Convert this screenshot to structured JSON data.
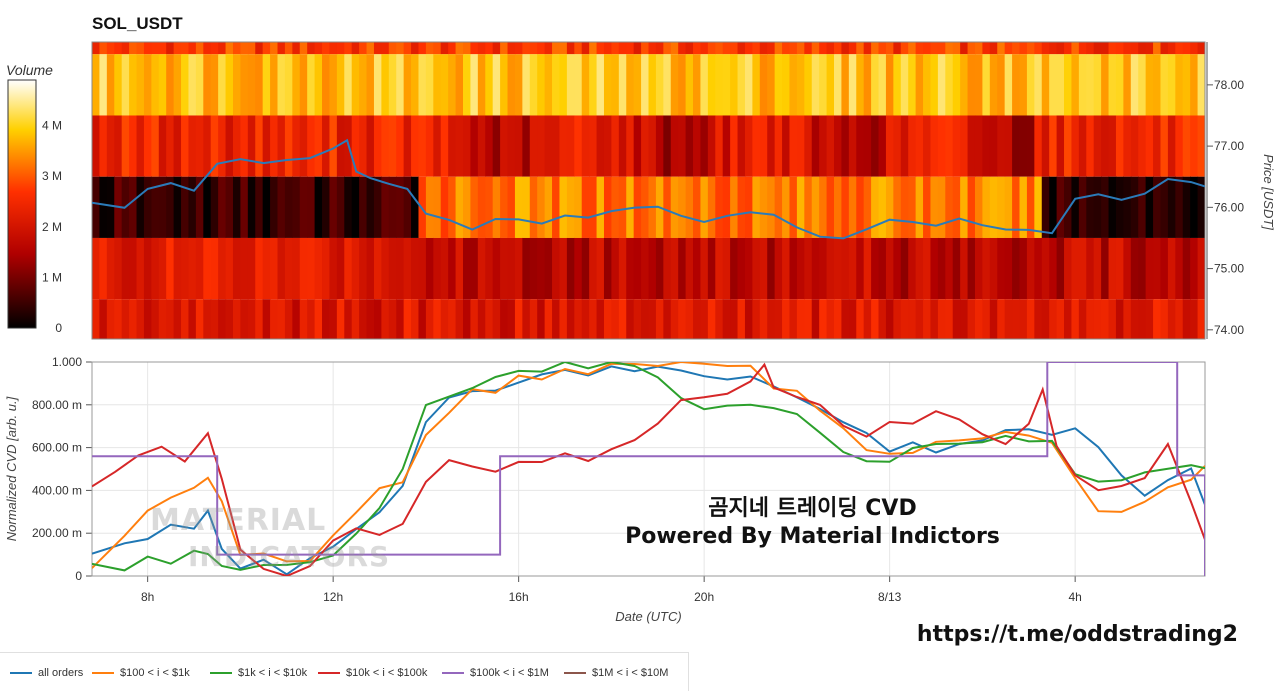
{
  "title": "SOL_USDT",
  "colorbar": {
    "title": "Volume",
    "ticks": [
      {
        "label": "4 M",
        "value": 4
      },
      {
        "label": "3 M",
        "value": 3
      },
      {
        "label": "2 M",
        "value": 2
      },
      {
        "label": "1 M",
        "value": 1
      },
      {
        "label": "0",
        "value": 0
      }
    ],
    "max": 4.9
  },
  "overlay": {
    "line1": "곰지네 트레이딩 CVD",
    "line2": "Powered By Material Indictors",
    "watermark1": "MATERIAL",
    "watermark2": "INDICATORS"
  },
  "link": "https://t.me/oddstrading2",
  "colors": {
    "all_orders": "#1f77b4",
    "band_100_1k": "#ff7f0e",
    "band_1k_10k": "#2ca02c",
    "band_10k_100k": "#d62728",
    "band_100k_1m": "#9467bd",
    "band_1m_10m": "#8c564b"
  },
  "chart_data": [
    {
      "type": "heatmap",
      "title": "SOL_USDT",
      "ylabel": "Price [USDT]",
      "ylim": [
        73.85,
        78.7
      ],
      "yticks": [
        {
          "label": "78.00",
          "value": 78.0
        },
        {
          "label": "77.00",
          "value": 77.0
        },
        {
          "label": "76.00",
          "value": 76.0
        },
        {
          "label": "75.00",
          "value": 75.0
        },
        {
          "label": "74.00",
          "value": 74.0
        }
      ],
      "x_range_hours": [
        6.8,
        30.8
      ],
      "price_bins": [
        {
          "low": 78.5,
          "high": 78.7,
          "volume_m": 2.7
        },
        {
          "low": 77.5,
          "high": 78.5,
          "volume_m": 3.9
        },
        {
          "low": 76.5,
          "high": 77.5,
          "volume_m": 2.4
        },
        {
          "low": 75.5,
          "high": 76.5,
          "volume_m": 1.8
        },
        {
          "low": 74.5,
          "high": 75.5,
          "volume_m": 2.2
        },
        {
          "low": 73.85,
          "high": 74.5,
          "volume_m": 2.1
        }
      ],
      "price_line": {
        "name": "",
        "hours": [
          6.8,
          7.5,
          8.0,
          8.5,
          9.0,
          9.5,
          10.0,
          10.5,
          11.0,
          11.5,
          12.0,
          12.3,
          12.5,
          12.8,
          13.2,
          13.6,
          14.0,
          14.5,
          15.0,
          15.5,
          16.0,
          16.5,
          17.0,
          17.5,
          18.0,
          18.5,
          19.0,
          19.5,
          20.0,
          20.5,
          21.0,
          21.5,
          22.0,
          22.5,
          23.0,
          23.5,
          24.0,
          24.5,
          25.0,
          25.5,
          26.0,
          26.5,
          27.0,
          27.5,
          28.0,
          28.5,
          29.0,
          29.5,
          30.0,
          30.5,
          30.8
        ],
        "prices": [
          76.1,
          76.0,
          76.3,
          76.4,
          76.25,
          76.7,
          76.8,
          76.75,
          76.8,
          76.8,
          77.0,
          77.1,
          76.6,
          76.5,
          76.4,
          76.3,
          75.9,
          75.8,
          75.6,
          75.8,
          75.8,
          75.7,
          75.85,
          75.8,
          75.95,
          76.0,
          76.0,
          75.9,
          75.8,
          75.85,
          75.95,
          75.85,
          75.7,
          75.55,
          75.5,
          75.65,
          75.8,
          75.75,
          75.7,
          75.8,
          75.7,
          75.6,
          75.65,
          75.6,
          76.1,
          76.2,
          76.1,
          76.2,
          76.5,
          76.4,
          76.35
        ]
      }
    },
    {
      "type": "line",
      "xlabel": "Date (UTC)",
      "ylabel": "Normalized CVD [arb. u.]",
      "ylim": [
        0,
        1.0
      ],
      "x_range_hours": [
        6.8,
        30.8
      ],
      "xticks": [
        {
          "label": "8h",
          "value": 8
        },
        {
          "label": "12h",
          "value": 12
        },
        {
          "label": "16h",
          "value": 16
        },
        {
          "label": "20h",
          "value": 20
        },
        {
          "label": "8/13",
          "value": 24
        },
        {
          "label": "4h",
          "value": 28
        }
      ],
      "yticks": [
        {
          "label": "1.000",
          "value": 1.0
        },
        {
          "label": "800.00 m",
          "value": 0.8
        },
        {
          "label": "600.00 m",
          "value": 0.6
        },
        {
          "label": "400.00 m",
          "value": 0.4
        },
        {
          "label": "200.00 m",
          "value": 0.2
        },
        {
          "label": "0",
          "value": 0
        }
      ],
      "grid": true,
      "legend_placement": "bottom",
      "series": [
        {
          "name": "all orders",
          "color": "#1f77b4",
          "x": [
            6.8,
            7.5,
            8.0,
            8.5,
            9.0,
            9.3,
            9.6,
            10.0,
            10.5,
            11.0,
            11.5,
            12.0,
            12.5,
            13.0,
            13.5,
            14.0,
            14.5,
            15.0,
            15.5,
            16.0,
            16.5,
            17.0,
            17.5,
            18.0,
            18.5,
            19.0,
            19.5,
            20.0,
            20.5,
            21.0,
            21.5,
            22.0,
            22.5,
            23.0,
            23.5,
            24.0,
            24.5,
            25.0,
            25.5,
            26.0,
            26.5,
            27.0,
            27.5,
            28.0,
            28.5,
            29.0,
            29.5,
            30.0,
            30.5,
            30.8
          ],
          "y": [
            0.12,
            0.15,
            0.18,
            0.22,
            0.24,
            0.3,
            0.15,
            0.05,
            0.06,
            0.03,
            0.08,
            0.15,
            0.22,
            0.3,
            0.4,
            0.7,
            0.82,
            0.86,
            0.88,
            0.9,
            0.92,
            0.94,
            0.95,
            0.97,
            0.98,
            0.99,
            0.95,
            0.93,
            0.91,
            0.95,
            0.88,
            0.85,
            0.8,
            0.72,
            0.65,
            0.6,
            0.62,
            0.6,
            0.62,
            0.65,
            0.67,
            0.68,
            0.66,
            0.7,
            0.6,
            0.45,
            0.4,
            0.45,
            0.48,
            0.35
          ]
        },
        {
          "name": "$100 < i < $1k",
          "color": "#ff7f0e",
          "x": [
            6.8,
            7.5,
            8.0,
            8.5,
            9.0,
            9.3,
            9.6,
            10.0,
            10.5,
            11.0,
            11.5,
            12.0,
            12.5,
            13.0,
            13.5,
            14.0,
            14.5,
            15.0,
            15.5,
            16.0,
            16.5,
            17.0,
            17.5,
            18.0,
            18.5,
            19.0,
            19.5,
            20.0,
            20.5,
            21.0,
            21.5,
            22.0,
            22.5,
            23.0,
            23.5,
            24.0,
            24.5,
            25.0,
            25.5,
            26.0,
            26.5,
            27.0,
            27.5,
            28.0,
            28.5,
            29.0,
            29.5,
            30.0,
            30.5,
            30.8
          ],
          "y": [
            0.02,
            0.2,
            0.3,
            0.35,
            0.4,
            0.48,
            0.35,
            0.12,
            0.1,
            0.05,
            0.08,
            0.2,
            0.3,
            0.4,
            0.45,
            0.65,
            0.78,
            0.85,
            0.88,
            0.92,
            0.94,
            0.96,
            0.96,
            0.98,
            1.0,
            1.0,
            1.0,
            1.0,
            1.0,
            0.99,
            0.9,
            0.85,
            0.78,
            0.68,
            0.6,
            0.58,
            0.6,
            0.62,
            0.64,
            0.65,
            0.66,
            0.64,
            0.62,
            0.45,
            0.32,
            0.3,
            0.35,
            0.42,
            0.44,
            0.5
          ]
        },
        {
          "name": "$1k < i < $10k",
          "color": "#2ca02c",
          "x": [
            6.8,
            7.5,
            8.0,
            8.5,
            9.0,
            9.3,
            9.6,
            10.0,
            10.5,
            11.0,
            11.5,
            12.0,
            12.5,
            13.0,
            13.5,
            14.0,
            14.5,
            15.0,
            15.5,
            16.0,
            16.5,
            17.0,
            17.5,
            18.0,
            18.5,
            19.0,
            19.5,
            20.0,
            20.5,
            21.0,
            21.5,
            22.0,
            22.5,
            23.0,
            23.5,
            24.0,
            24.5,
            25.0,
            25.5,
            26.0,
            26.5,
            27.0,
            27.5,
            28.0,
            28.5,
            29.0,
            29.5,
            30.0,
            30.5,
            30.8
          ],
          "y": [
            0.04,
            0.05,
            0.07,
            0.08,
            0.12,
            0.1,
            0.05,
            0.02,
            0.05,
            0.04,
            0.06,
            0.1,
            0.2,
            0.32,
            0.5,
            0.78,
            0.86,
            0.9,
            0.92,
            0.95,
            0.98,
            1.0,
            0.98,
            0.99,
            0.98,
            0.92,
            0.85,
            0.8,
            0.8,
            0.8,
            0.78,
            0.74,
            0.68,
            0.6,
            0.56,
            0.55,
            0.6,
            0.62,
            0.64,
            0.65,
            0.64,
            0.62,
            0.62,
            0.48,
            0.45,
            0.47,
            0.49,
            0.52,
            0.52,
            0.51
          ]
        },
        {
          "name": "$10k < i < $100k",
          "color": "#d62728",
          "x": [
            6.8,
            7.3,
            7.8,
            8.3,
            8.8,
            9.3,
            9.6,
            10.0,
            10.5,
            11.0,
            11.5,
            12.0,
            12.5,
            13.0,
            13.5,
            14.0,
            14.5,
            15.0,
            15.5,
            16.0,
            16.5,
            17.0,
            17.5,
            18.0,
            18.5,
            19.0,
            19.5,
            20.0,
            20.5,
            21.0,
            21.3,
            21.5,
            22.0,
            22.5,
            23.0,
            23.5,
            24.0,
            24.5,
            25.0,
            25.5,
            26.0,
            26.5,
            27.0,
            27.3,
            27.6,
            28.0,
            28.5,
            29.0,
            29.5,
            30.0,
            30.5,
            30.8
          ],
          "y": [
            0.4,
            0.5,
            0.55,
            0.6,
            0.55,
            0.65,
            0.45,
            0.1,
            0.05,
            0.02,
            0.05,
            0.15,
            0.22,
            0.2,
            0.25,
            0.45,
            0.55,
            0.5,
            0.5,
            0.55,
            0.52,
            0.55,
            0.56,
            0.6,
            0.65,
            0.73,
            0.82,
            0.84,
            0.85,
            0.9,
            0.98,
            0.9,
            0.85,
            0.8,
            0.72,
            0.65,
            0.7,
            0.72,
            0.75,
            0.72,
            0.68,
            0.62,
            0.72,
            0.85,
            0.6,
            0.45,
            0.4,
            0.42,
            0.48,
            0.6,
            0.35,
            0.18
          ]
        },
        {
          "name": "$100k < i < $1M",
          "color": "#9467bd",
          "x": [
            6.8,
            9.5,
            9.5,
            15.6,
            15.6,
            27.4,
            27.4,
            30.2,
            30.2,
            30.8,
            30.8
          ],
          "y": [
            0.56,
            0.56,
            0.1,
            0.1,
            0.56,
            0.56,
            1.0,
            1.0,
            0.47,
            0.47,
            0.0
          ]
        },
        {
          "name": "$1M < i < $10M",
          "color": "#8c564b",
          "x": [],
          "y": []
        }
      ]
    }
  ]
}
